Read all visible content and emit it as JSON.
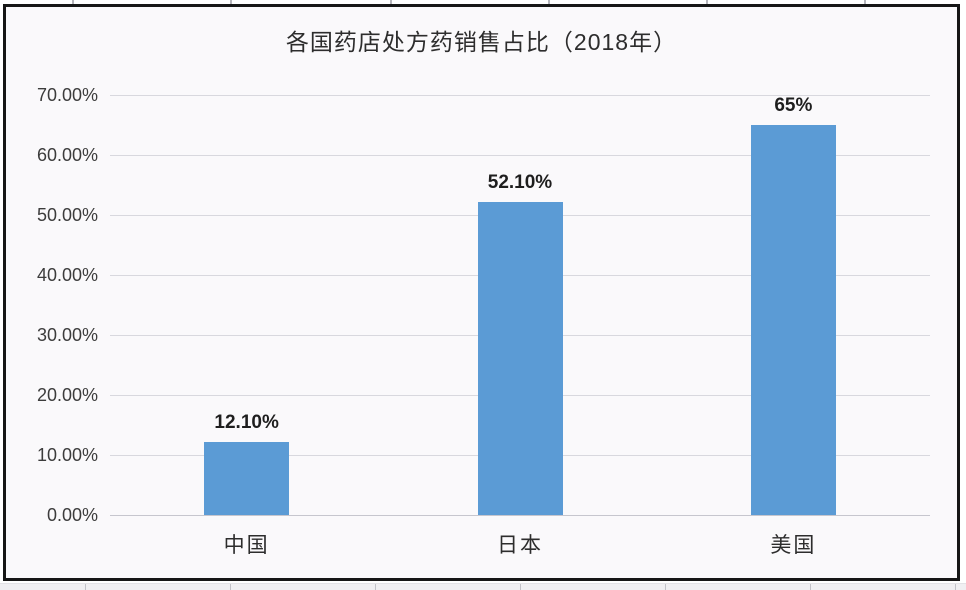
{
  "chart_data": {
    "type": "bar",
    "title": "各国药店处方药销售占比（2018年）",
    "categories": [
      "中国",
      "日本",
      "美国"
    ],
    "values": [
      12.1,
      52.1,
      65
    ],
    "value_labels": [
      "12.10%",
      "52.10%",
      "65%"
    ],
    "y_ticks": [
      "70.00%",
      "60.00%",
      "50.00%",
      "40.00%",
      "30.00%",
      "20.00%",
      "10.00%",
      "0.00%"
    ],
    "ylim": [
      0,
      70
    ],
    "xlabel": "",
    "ylabel": "",
    "grid": true,
    "legend_position": "none",
    "bar_color": "#5b9bd5",
    "gridline_color": "#d8d8de",
    "frame_border_color": "#161616",
    "background_color": "#faf9fb"
  }
}
